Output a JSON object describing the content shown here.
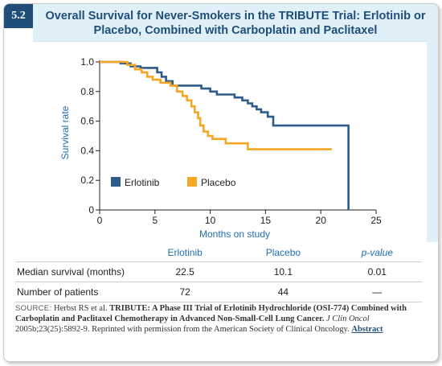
{
  "figure_label": "5.2",
  "title_line1": "Overall Survival for Never-Smokers in the TRIBUTE Trial: Erlotinib or",
  "title_line2": "Placebo, Combined with Carboplatin and Paclitaxel",
  "colors": {
    "erlotinib": "#2e5b8a",
    "placebo": "#f5a623",
    "title": "#1f4e79",
    "header_bg": "#dff0f9"
  },
  "chart_data": {
    "type": "line",
    "step": true,
    "xlabel": "Months on study",
    "ylabel": "Survival rate",
    "xlim": [
      0,
      25
    ],
    "ylim": [
      0,
      1.0
    ],
    "xticks": [
      "0",
      "5",
      "10",
      "15",
      "20",
      "25"
    ],
    "yticks": [
      "0",
      "0.2",
      "0.4",
      "0.6",
      "0.8",
      "1.0"
    ],
    "legend_position": "lower-left",
    "grid": false,
    "series": [
      {
        "name": "Erlotinib",
        "color": "#2e5b8a",
        "points": [
          [
            0,
            1.0
          ],
          [
            1.9,
            1.0
          ],
          [
            1.9,
            0.99
          ],
          [
            2.8,
            0.99
          ],
          [
            2.8,
            0.97
          ],
          [
            3.7,
            0.97
          ],
          [
            3.7,
            0.96
          ],
          [
            5.2,
            0.96
          ],
          [
            5.2,
            0.93
          ],
          [
            5.6,
            0.93
          ],
          [
            5.6,
            0.9
          ],
          [
            6.0,
            0.9
          ],
          [
            6.0,
            0.87
          ],
          [
            6.6,
            0.87
          ],
          [
            6.6,
            0.84
          ],
          [
            9.2,
            0.84
          ],
          [
            9.2,
            0.82
          ],
          [
            10.0,
            0.82
          ],
          [
            10.0,
            0.8
          ],
          [
            10.6,
            0.8
          ],
          [
            10.6,
            0.78
          ],
          [
            12.2,
            0.78
          ],
          [
            12.2,
            0.76
          ],
          [
            12.9,
            0.76
          ],
          [
            12.9,
            0.74
          ],
          [
            13.4,
            0.74
          ],
          [
            13.4,
            0.72
          ],
          [
            13.8,
            0.72
          ],
          [
            13.8,
            0.7
          ],
          [
            14.2,
            0.7
          ],
          [
            14.2,
            0.68
          ],
          [
            14.6,
            0.68
          ],
          [
            14.6,
            0.66
          ],
          [
            15.2,
            0.66
          ],
          [
            15.2,
            0.63
          ],
          [
            15.7,
            0.63
          ],
          [
            15.7,
            0.57
          ],
          [
            22.5,
            0.57
          ],
          [
            22.5,
            0.0
          ]
        ]
      },
      {
        "name": "Placebo",
        "color": "#f5a623",
        "points": [
          [
            0,
            1.0
          ],
          [
            2.5,
            1.0
          ],
          [
            2.5,
            0.98
          ],
          [
            3.2,
            0.98
          ],
          [
            3.2,
            0.95
          ],
          [
            3.8,
            0.95
          ],
          [
            3.8,
            0.93
          ],
          [
            4.3,
            0.93
          ],
          [
            4.3,
            0.9
          ],
          [
            4.8,
            0.9
          ],
          [
            4.8,
            0.88
          ],
          [
            5.5,
            0.88
          ],
          [
            5.5,
            0.86
          ],
          [
            6.4,
            0.86
          ],
          [
            6.4,
            0.84
          ],
          [
            7.0,
            0.84
          ],
          [
            7.0,
            0.8
          ],
          [
            7.5,
            0.8
          ],
          [
            7.5,
            0.77
          ],
          [
            7.9,
            0.77
          ],
          [
            7.9,
            0.74
          ],
          [
            8.3,
            0.74
          ],
          [
            8.3,
            0.7
          ],
          [
            8.6,
            0.7
          ],
          [
            8.6,
            0.66
          ],
          [
            8.9,
            0.66
          ],
          [
            8.9,
            0.62
          ],
          [
            9.1,
            0.62
          ],
          [
            9.1,
            0.57
          ],
          [
            9.4,
            0.57
          ],
          [
            9.4,
            0.53
          ],
          [
            9.8,
            0.53
          ],
          [
            9.8,
            0.5
          ],
          [
            10.2,
            0.5
          ],
          [
            10.2,
            0.48
          ],
          [
            11.4,
            0.48
          ],
          [
            11.4,
            0.45
          ],
          [
            13.4,
            0.45
          ],
          [
            13.4,
            0.41
          ],
          [
            21.0,
            0.41
          ]
        ]
      }
    ]
  },
  "table": {
    "headers": [
      "",
      "Erlotinib",
      "Placebo",
      "p-value"
    ],
    "rows": [
      [
        "Median survival (months)",
        "22.5",
        "10.1",
        "0.01"
      ],
      [
        "Number of patients",
        "72",
        "44",
        "—"
      ]
    ]
  },
  "source": {
    "label": "SOURCE:",
    "authors": "Herbst RS et al.",
    "article_title": "TRIBUTE: A Phase III Trial of Erlotinib Hydrochloride (OSI-774) Combined with Carboplatin and Paclitaxel Chemotherapy in Advanced Non-Small-Cell Lung Cancer.",
    "journal": "J Clin Oncol",
    "citation": "2005b;23(25):5892-9. Reprinted with permission from the American Society of Clinical Oncology.",
    "link": "Abstract"
  }
}
